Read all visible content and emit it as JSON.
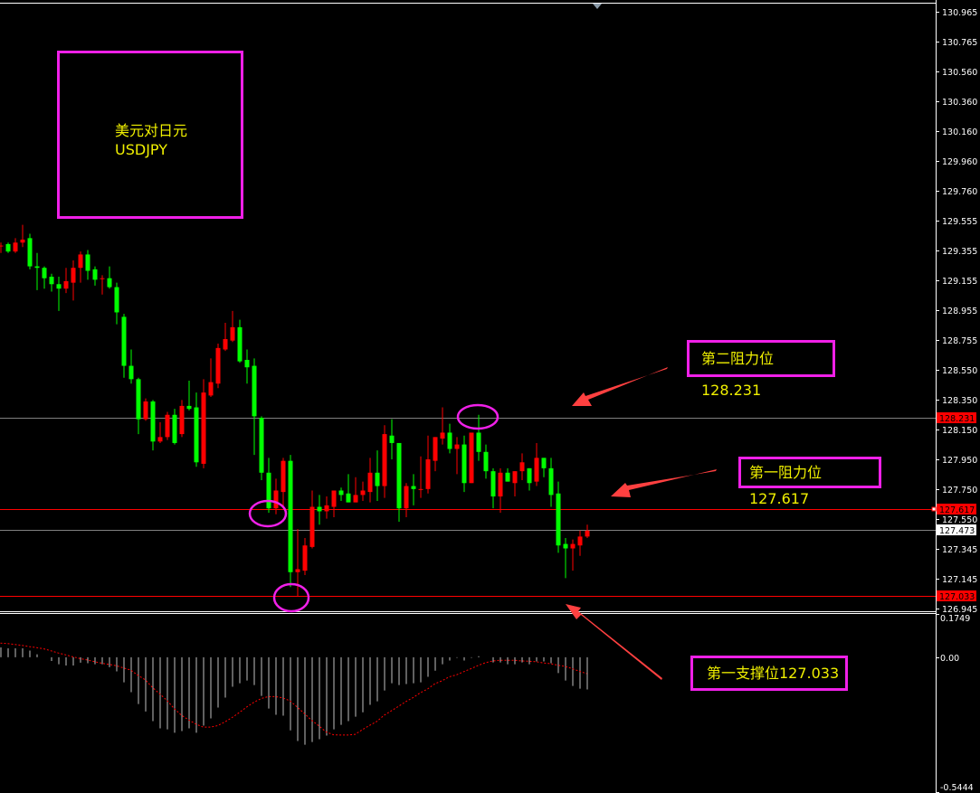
{
  "chart_data": [
    {
      "type": "candlestick",
      "symbol_title": "美元对日元",
      "symbol": "USDJPY",
      "ylim": [
        126.945,
        130.965
      ],
      "y_ticks": [
        "130.965",
        "130.765",
        "130.560",
        "130.360",
        "130.160",
        "129.960",
        "129.760",
        "129.555",
        "129.355",
        "129.155",
        "128.955",
        "128.755",
        "128.550",
        "128.350",
        "128.150",
        "127.950",
        "127.750",
        "127.550",
        "127.345",
        "127.145",
        "126.945"
      ],
      "colors": {
        "up": "#ff0000",
        "down": "#00ff00",
        "background": "#000000",
        "annotation": "#f020e8",
        "annotation_text": "#f0f000",
        "arrow": "#ff4040"
      },
      "ohlc_columns": [
        "open",
        "high",
        "low",
        "close"
      ],
      "ohlc": [
        [
          129.39,
          129.41,
          129.34,
          129.39
        ],
        [
          129.4,
          129.41,
          129.34,
          129.35
        ],
        [
          129.35,
          129.44,
          129.34,
          129.41
        ],
        [
          129.41,
          129.53,
          129.38,
          129.43
        ],
        [
          129.44,
          129.47,
          129.23,
          129.25
        ],
        [
          129.25,
          129.34,
          129.09,
          129.24
        ],
        [
          129.24,
          129.25,
          129.1,
          129.17
        ],
        [
          129.18,
          129.2,
          129.08,
          129.13
        ],
        [
          129.13,
          129.18,
          128.95,
          129.1
        ],
        [
          129.1,
          129.24,
          129.07,
          129.15
        ],
        [
          129.14,
          129.29,
          129.02,
          129.24
        ],
        [
          129.24,
          129.35,
          129.14,
          129.33
        ],
        [
          129.33,
          129.36,
          129.16,
          129.22
        ],
        [
          129.23,
          129.25,
          129.12,
          129.16
        ],
        [
          129.17,
          129.19,
          129.06,
          129.17
        ],
        [
          129.17,
          129.25,
          129.1,
          129.11
        ],
        [
          129.11,
          129.14,
          128.86,
          128.94
        ],
        [
          128.91,
          128.93,
          128.5,
          128.58
        ],
        [
          128.58,
          128.69,
          128.46,
          128.49
        ],
        [
          128.49,
          128.5,
          128.12,
          128.22
        ],
        [
          128.22,
          128.36,
          128.21,
          128.34
        ],
        [
          128.34,
          128.35,
          128.01,
          128.07
        ],
        [
          128.07,
          128.2,
          128.06,
          128.1
        ],
        [
          128.1,
          128.27,
          128.08,
          128.25
        ],
        [
          128.25,
          128.29,
          128.05,
          128.06
        ],
        [
          128.12,
          128.35,
          128.1,
          128.31
        ],
        [
          128.31,
          128.48,
          128.28,
          128.29
        ],
        [
          128.3,
          128.4,
          127.9,
          127.93
        ],
        [
          127.92,
          128.49,
          127.89,
          128.4
        ],
        [
          128.38,
          128.63,
          128.37,
          128.47
        ],
        [
          128.46,
          128.73,
          128.43,
          128.7
        ],
        [
          128.69,
          128.87,
          128.68,
          128.76
        ],
        [
          128.75,
          128.95,
          128.74,
          128.84
        ],
        [
          128.84,
          128.89,
          128.6,
          128.61
        ],
        [
          128.62,
          128.69,
          128.46,
          128.57
        ],
        [
          128.58,
          128.63,
          127.98,
          128.24
        ],
        [
          128.23,
          128.24,
          127.81,
          127.86
        ],
        [
          127.86,
          127.96,
          127.59,
          127.62
        ],
        [
          127.62,
          127.82,
          127.58,
          127.74
        ],
        [
          127.73,
          127.96,
          127.63,
          127.94
        ],
        [
          127.94,
          127.98,
          127.09,
          127.19
        ],
        [
          127.19,
          127.48,
          127.03,
          127.21
        ],
        [
          127.2,
          127.42,
          127.17,
          127.37
        ],
        [
          127.36,
          127.74,
          127.35,
          127.63
        ],
        [
          127.63,
          127.71,
          127.51,
          127.6
        ],
        [
          127.6,
          127.7,
          127.55,
          127.64
        ],
        [
          127.63,
          127.74,
          127.56,
          127.74
        ],
        [
          127.74,
          127.76,
          127.67,
          127.71
        ],
        [
          127.72,
          127.85,
          127.66,
          127.66
        ],
        [
          127.66,
          127.83,
          127.66,
          127.71
        ],
        [
          127.71,
          127.8,
          127.67,
          127.74
        ],
        [
          127.73,
          127.96,
          127.66,
          127.86
        ],
        [
          127.86,
          128.01,
          127.67,
          127.77
        ],
        [
          127.77,
          128.18,
          127.69,
          128.12
        ],
        [
          128.11,
          128.22,
          127.95,
          128.06
        ],
        [
          128.06,
          128.06,
          127.53,
          127.62
        ],
        [
          127.62,
          127.79,
          127.56,
          127.77
        ],
        [
          127.77,
          127.85,
          127.64,
          127.75
        ],
        [
          127.75,
          127.97,
          127.69,
          127.75
        ],
        [
          127.75,
          128.11,
          127.72,
          127.95
        ],
        [
          127.94,
          128.1,
          127.87,
          128.1
        ],
        [
          128.09,
          128.3,
          128.05,
          128.13
        ],
        [
          128.13,
          128.19,
          127.99,
          128.02
        ],
        [
          128.02,
          128.1,
          127.85,
          128.05
        ],
        [
          128.05,
          128.11,
          127.73,
          127.79
        ],
        [
          127.79,
          128.13,
          127.79,
          128.13
        ],
        [
          128.13,
          128.25,
          127.94,
          128.0
        ],
        [
          128.0,
          128.05,
          127.82,
          127.87
        ],
        [
          127.87,
          127.89,
          127.62,
          127.7
        ],
        [
          127.7,
          127.89,
          127.59,
          127.86
        ],
        [
          127.86,
          127.89,
          127.8,
          127.8
        ],
        [
          127.79,
          127.87,
          127.7,
          127.87
        ],
        [
          127.87,
          127.99,
          127.81,
          127.93
        ],
        [
          127.89,
          127.89,
          127.74,
          127.79
        ],
        [
          127.8,
          128.06,
          127.77,
          127.96
        ],
        [
          127.96,
          127.96,
          127.83,
          127.89
        ],
        [
          127.89,
          127.96,
          127.63,
          127.71
        ],
        [
          127.72,
          127.8,
          127.32,
          127.37
        ],
        [
          127.38,
          127.42,
          127.15,
          127.35
        ],
        [
          127.35,
          127.41,
          127.2,
          127.38
        ],
        [
          127.37,
          127.47,
          127.3,
          127.43
        ],
        [
          127.43,
          127.51,
          127.42,
          127.47
        ]
      ],
      "levels": [
        {
          "price": "128.231",
          "label": "第二阻力位128.231",
          "line_color": "#808080",
          "tag_color": "#ff0000"
        },
        {
          "price": "127.617",
          "label": "第一阻力位127.617",
          "line_color": "#ff0000",
          "tag_color": "#ff0000"
        },
        {
          "price": "127.473",
          "label": "",
          "line_color": "#808080",
          "tag_color": "#ffffff"
        },
        {
          "price": "127.033",
          "label": "第一支撑位127.033",
          "line_color": "#ff0000",
          "tag_color": "#ff0000"
        }
      ]
    },
    {
      "type": "bar+line",
      "indicator": "MACD",
      "ylim": [
        -0.5444,
        0.1749
      ],
      "y_ticks": [
        "0.1749",
        "0.00",
        "-0.5444"
      ],
      "colors": {
        "histogram": "#c0c0c0",
        "signal": "#ff0000"
      },
      "histogram": [
        0.04,
        0.036,
        0.036,
        0.036,
        0.027,
        0.012,
        0.0,
        -0.015,
        -0.028,
        -0.033,
        -0.033,
        -0.022,
        -0.024,
        -0.028,
        -0.028,
        -0.04,
        -0.057,
        -0.101,
        -0.141,
        -0.189,
        -0.219,
        -0.258,
        -0.287,
        -0.291,
        -0.305,
        -0.298,
        -0.287,
        -0.305,
        -0.276,
        -0.247,
        -0.203,
        -0.163,
        -0.119,
        -0.105,
        -0.094,
        -0.112,
        -0.156,
        -0.207,
        -0.232,
        -0.236,
        -0.295,
        -0.338,
        -0.353,
        -0.342,
        -0.331,
        -0.316,
        -0.291,
        -0.273,
        -0.258,
        -0.24,
        -0.222,
        -0.192,
        -0.178,
        -0.134,
        -0.105,
        -0.112,
        -0.108,
        -0.105,
        -0.101,
        -0.079,
        -0.054,
        -0.028,
        -0.013,
        -0.002,
        -0.013,
        -0.002,
        0.004,
        0.0,
        -0.021,
        -0.021,
        -0.028,
        -0.028,
        -0.021,
        -0.028,
        -0.017,
        -0.017,
        -0.024,
        -0.064,
        -0.094,
        -0.116,
        -0.127,
        -0.13
      ],
      "signal": [
        0.057,
        0.055,
        0.052,
        0.048,
        0.043,
        0.039,
        0.034,
        0.026,
        0.017,
        0.01,
        0.002,
        -0.005,
        -0.011,
        -0.018,
        -0.024,
        -0.029,
        -0.034,
        -0.043,
        -0.052,
        -0.073,
        -0.091,
        -0.122,
        -0.148,
        -0.174,
        -0.207,
        -0.234,
        -0.253,
        -0.27,
        -0.282,
        -0.282,
        -0.276,
        -0.261,
        -0.243,
        -0.223,
        -0.201,
        -0.182,
        -0.167,
        -0.159,
        -0.159,
        -0.164,
        -0.176,
        -0.201,
        -0.228,
        -0.255,
        -0.277,
        -0.302,
        -0.313,
        -0.314,
        -0.314,
        -0.311,
        -0.292,
        -0.275,
        -0.259,
        -0.234,
        -0.216,
        -0.198,
        -0.179,
        -0.163,
        -0.143,
        -0.128,
        -0.107,
        -0.095,
        -0.079,
        -0.071,
        -0.058,
        -0.046,
        -0.033,
        -0.022,
        -0.015,
        -0.012,
        -0.012,
        -0.012,
        -0.015,
        -0.016,
        -0.018,
        -0.023,
        -0.026,
        -0.032,
        -0.037,
        -0.046,
        -0.057,
        -0.066
      ]
    }
  ],
  "annotations": {
    "title_line1": "美元对日元",
    "title_line2": "USDJPY",
    "resistance2": "第二阻力位128.231",
    "resistance1": "第一阻力位127.617",
    "support1": "第一支撑位127.033"
  }
}
